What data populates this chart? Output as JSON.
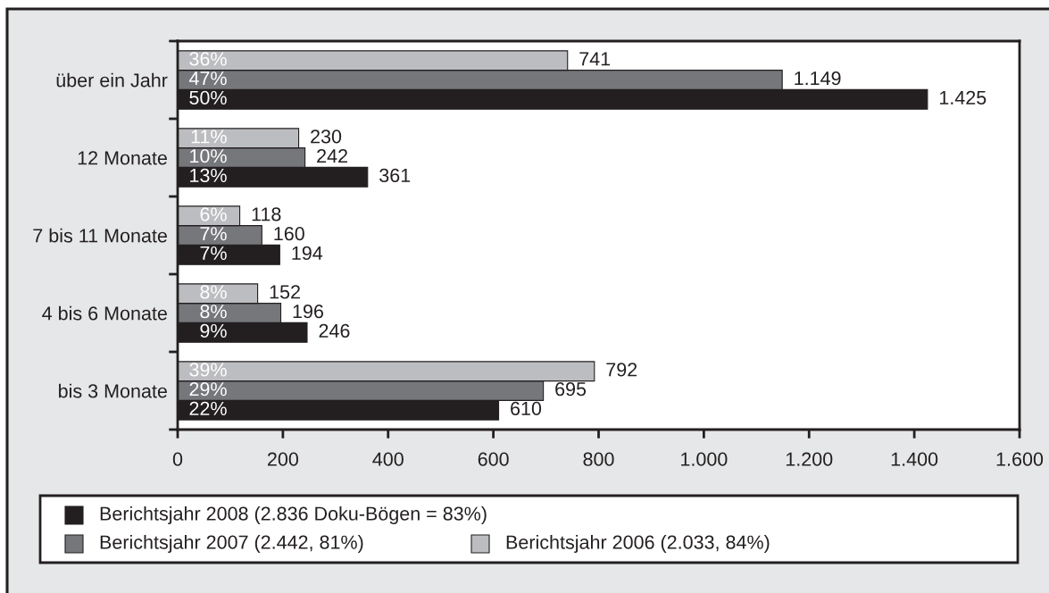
{
  "chart_data": {
    "type": "bar",
    "orientation": "horizontal",
    "categories": [
      "über ein Jahr",
      "12 Monate",
      "7 bis 11 Monate",
      "4 bis 6 Monate",
      "bis 3 Monate"
    ],
    "series": [
      {
        "name": "Berichtsjahr 2008 (2.836 Doku-Bögen = 83%)",
        "color": "#231f20",
        "values": [
          1425,
          361,
          194,
          246,
          610
        ],
        "value_labels": [
          "1.425",
          "361",
          "194",
          "246",
          "610"
        ]
      },
      {
        "name": "Berichtsjahr 2007 (2.442, 81%)",
        "color": "#76777b",
        "values": [
          1149,
          242,
          160,
          196,
          695
        ],
        "value_labels": [
          "1.149",
          "242",
          "160",
          "196",
          "695"
        ]
      },
      {
        "name": "Berichtsjahr 2006 (2.033, 84%)",
        "color": "#bcbdc0",
        "values": [
          741,
          230,
          118,
          152,
          792
        ],
        "value_labels": [
          "741",
          "230",
          "118",
          "152",
          "792"
        ]
      }
    ],
    "xlim": [
      0,
      1600
    ],
    "xticks": [
      0,
      200,
      400,
      600,
      800,
      {
        "value": 1000,
        "label": "1.000"
      },
      {
        "value": 1200,
        "label": "1.200"
      },
      {
        "value": 1400,
        "label": "1.400"
      },
      {
        "value": 1600,
        "label": "1.600"
      }
    ],
    "legend": "bottom",
    "annotations": [
      "50%",
      "47%",
      "36%",
      "13%",
      "10%",
      "11%",
      "7%",
      "7%",
      "6%",
      "9%",
      "8%",
      "8%",
      "22%",
      "29%",
      "39%"
    ]
  }
}
